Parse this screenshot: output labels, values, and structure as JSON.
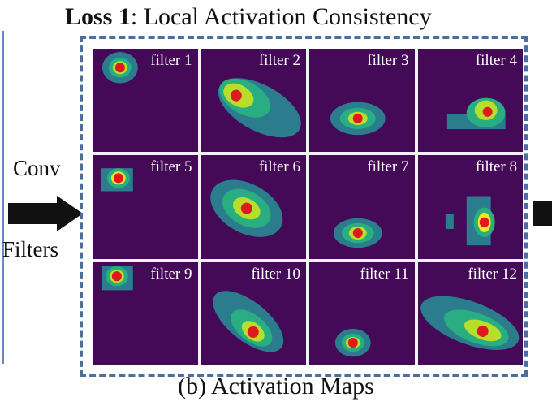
{
  "title": {
    "bold": "Loss 1",
    "rest": ": Local Activation Consistency"
  },
  "left_labels": {
    "top": "Conv",
    "bottom": "Filters"
  },
  "caption": "(b) Activation Maps",
  "colors": {
    "background": "#440a58",
    "low": "#2b7d8e",
    "mid": "#28ae80",
    "high": "#b7de2b",
    "peak": "#f4e61e",
    "marker": "#e0191e",
    "frame": "#4a6f9c"
  },
  "filters": [
    {
      "label": "filter 1"
    },
    {
      "label": "filter 2"
    },
    {
      "label": "filter 3"
    },
    {
      "label": "filter 4"
    },
    {
      "label": "filter 5"
    },
    {
      "label": "filter 6"
    },
    {
      "label": "filter 7"
    },
    {
      "label": "filter 8"
    },
    {
      "label": "filter 9"
    },
    {
      "label": "filter 10"
    },
    {
      "label": "filter 11"
    },
    {
      "label": "filter 12"
    }
  ]
}
